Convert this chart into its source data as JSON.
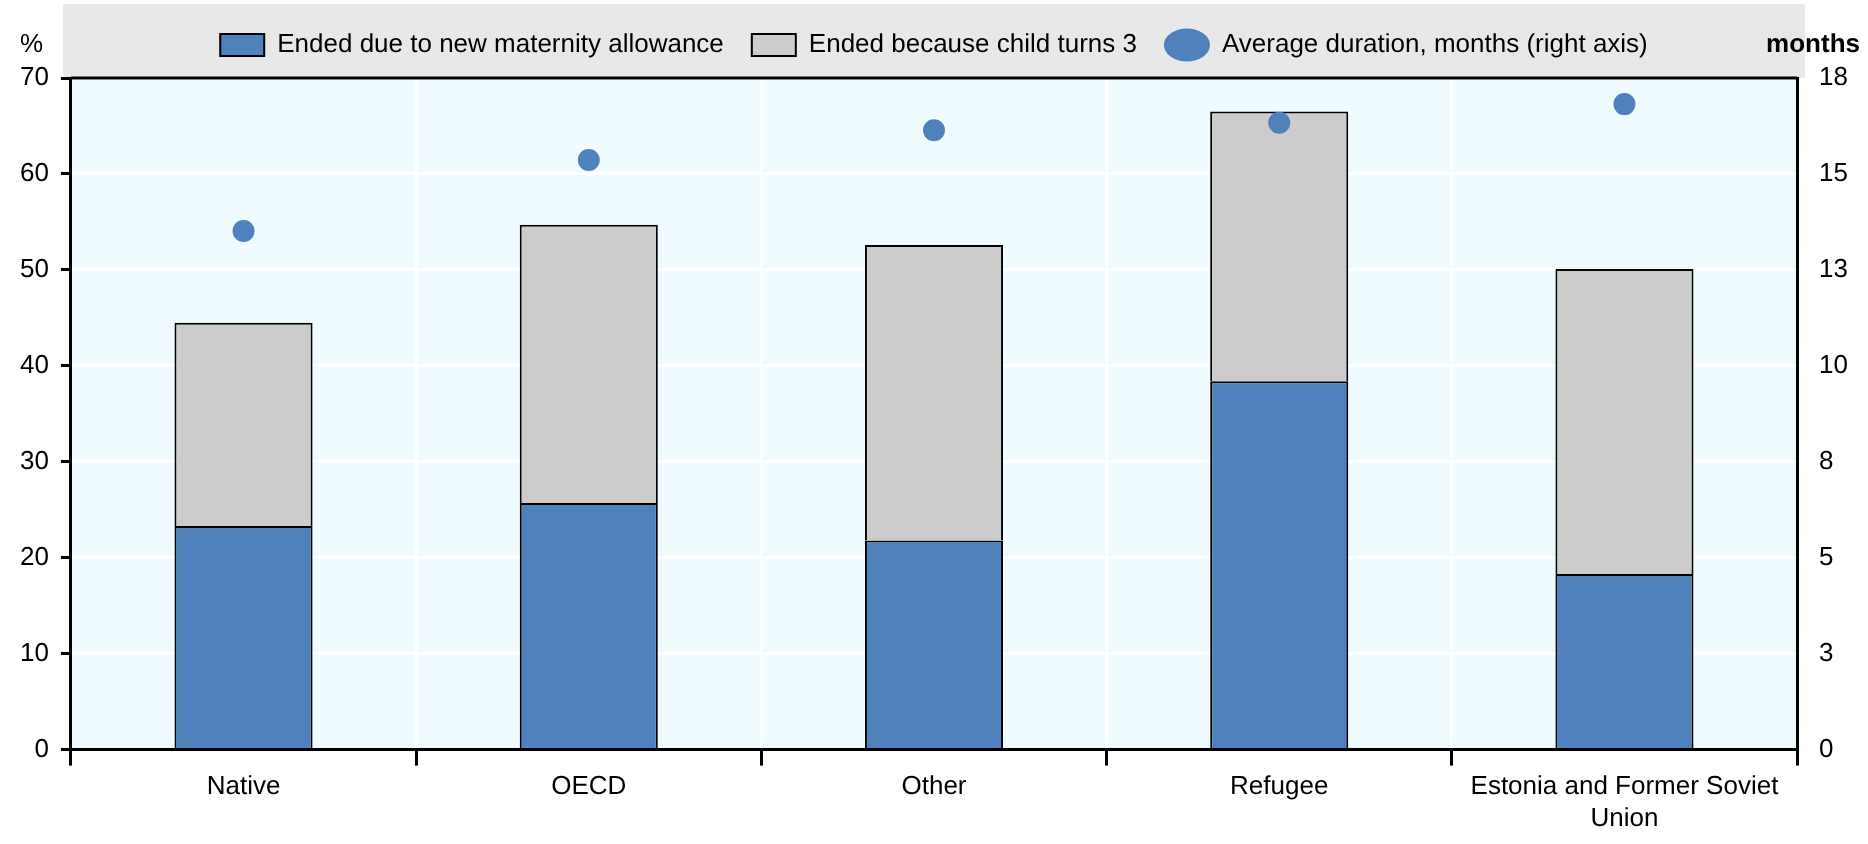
{
  "chart_data": {
    "type": "bar",
    "stacked": true,
    "ylabel": "%",
    "y2label": "months",
    "categories": [
      "Native",
      "OECD",
      "Other",
      "Refugee",
      "Estonia and Former Soviet Union"
    ],
    "series": [
      {
        "name": "Ended due to new maternity allowance",
        "color": "#4f81bd",
        "values": [
          23.3,
          25.7,
          21.8,
          38.4,
          18.3
        ]
      },
      {
        "name": "Ended because child turns 3",
        "color": "#cccccc",
        "values": [
          21.2,
          29.0,
          30.8,
          28.1,
          31.8
        ]
      },
      {
        "name": "Average duration, months (right axis)",
        "type": "scatter",
        "axis": "y2",
        "color": "#4f81bd",
        "marker": "circle",
        "values": [
          13.9,
          15.8,
          16.6,
          16.8,
          17.3
        ]
      }
    ],
    "ylim": [
      0,
      70
    ],
    "yticks": [
      0,
      10,
      20,
      30,
      40,
      50,
      60,
      70
    ],
    "y2lim": [
      0,
      18
    ],
    "y2ticks": [
      0,
      {
        "value": 2.571,
        "label": "3"
      },
      {
        "value": 5.143,
        "label": "5"
      },
      {
        "value": 7.714,
        "label": "8"
      },
      {
        "value": 10.286,
        "label": "10"
      },
      {
        "value": 12.857,
        "label": "13"
      },
      {
        "value": 15.429,
        "label": "15"
      },
      18
    ],
    "grid": true,
    "legend": "top"
  }
}
